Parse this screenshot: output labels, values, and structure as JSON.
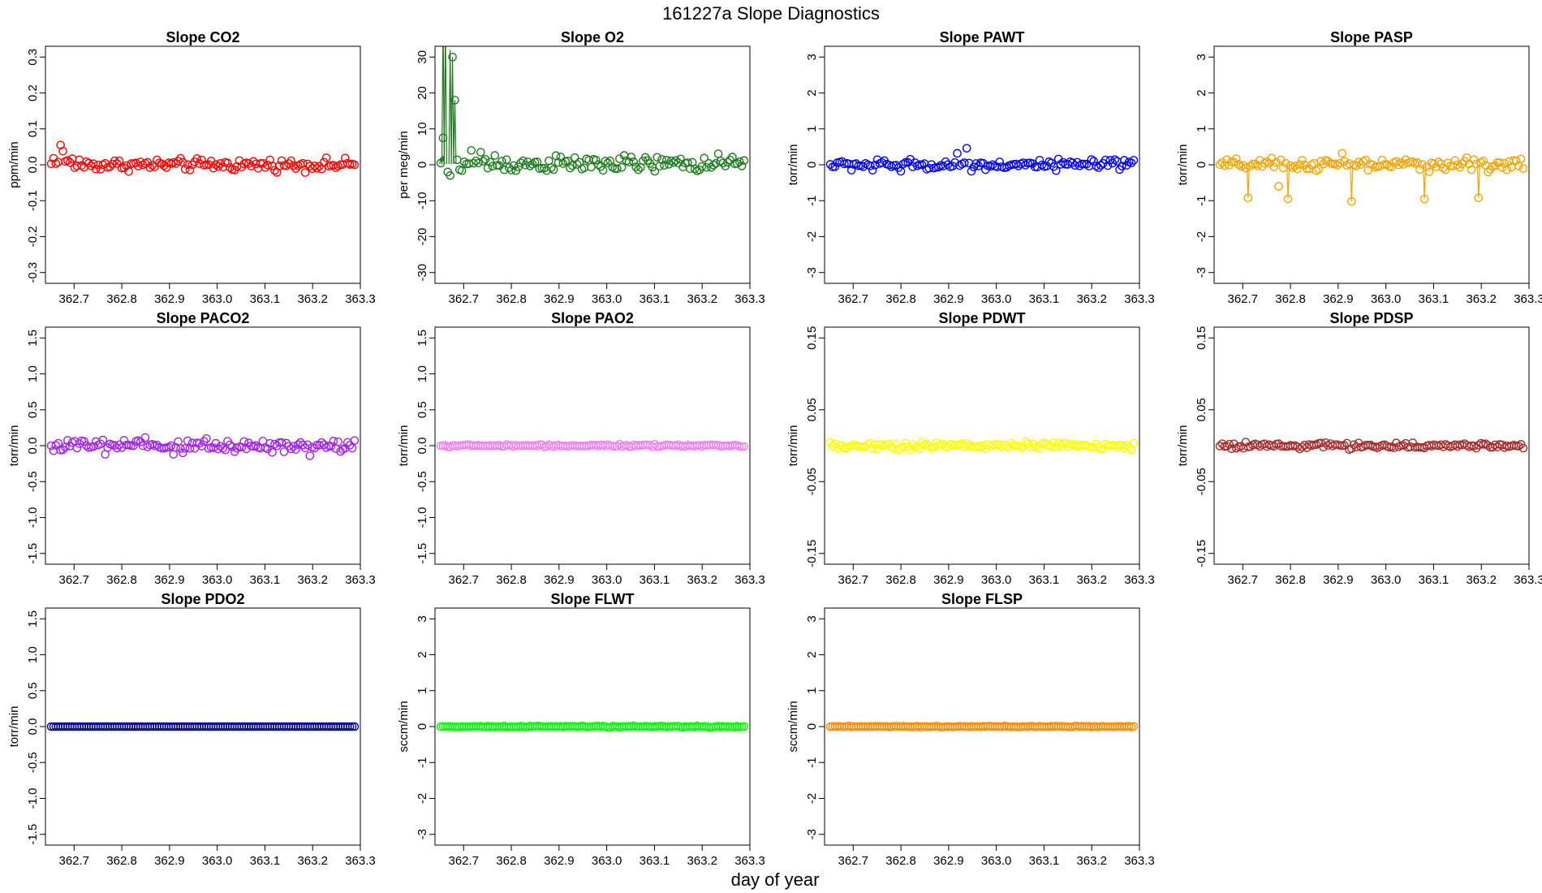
{
  "figure": {
    "title": "161227a   Slope Diagnostics",
    "xlabel": "day of year"
  },
  "chart_data": [
    {
      "type": "scatter",
      "title": "Slope CO2",
      "ylabel": "ppm/min",
      "color": "#ff0000",
      "xlim": [
        362.64,
        363.3
      ],
      "ylim": [
        -0.33,
        0.33
      ],
      "xticks": [
        "362.7",
        "362.8",
        "362.9",
        "363.0",
        "363.1",
        "363.2",
        "363.3"
      ],
      "yticks": [
        "-0.3",
        "-0.2",
        "-0.1",
        "0.0",
        "0.1",
        "0.2",
        "0.3"
      ],
      "n": 130,
      "base": 0,
      "noise": 0.008,
      "outliers": [
        [
          0.6,
          0.052
        ],
        [
          1.2,
          0.018
        ],
        [
          2.4,
          0.003
        ],
        [
          4.3,
          0.055
        ],
        [
          5.2,
          0.038
        ],
        [
          6.5,
          0.012
        ],
        [
          9.0,
          0.017
        ],
        [
          12.1,
          0.014
        ]
      ],
      "spikes": []
    },
    {
      "type": "scatter",
      "title": "Slope O2",
      "ylabel": "per meg/min",
      "color": "#1f7a1f",
      "xlim": [
        362.64,
        363.3
      ],
      "ylim": [
        -33,
        33
      ],
      "xticks": [
        "362.7",
        "362.8",
        "362.9",
        "363.0",
        "363.1",
        "363.2",
        "363.3"
      ],
      "yticks": [
        "-30",
        "-20",
        "-10",
        "0",
        "10",
        "20",
        "30"
      ],
      "n": 130,
      "base": 0.2,
      "noise": 1.1,
      "outliers": [
        [
          0.5,
          7.5
        ],
        [
          1.5,
          40
        ],
        [
          2.2,
          38
        ],
        [
          2.9,
          -2
        ],
        [
          3.6,
          32
        ],
        [
          4.0,
          -3
        ],
        [
          4.8,
          30
        ],
        [
          5.9,
          18
        ],
        [
          13.0,
          4
        ],
        [
          17.4,
          3.5
        ],
        [
          22.6,
          2.6
        ]
      ],
      "spikes": [
        [
          0.3,
          2
        ],
        [
          1.0,
          2.5
        ],
        [
          1.3,
          40
        ],
        [
          2.3,
          38
        ],
        [
          3.6,
          32
        ],
        [
          4.8,
          30
        ],
        [
          5.9,
          18
        ]
      ]
    },
    {
      "type": "scatter",
      "title": "Slope PAWT",
      "ylabel": "torr/min",
      "color": "#0000ff",
      "xlim": [
        362.64,
        363.3
      ],
      "ylim": [
        -3.3,
        3.3
      ],
      "xticks": [
        "362.7",
        "362.8",
        "362.9",
        "363.0",
        "363.1",
        "363.2",
        "363.3"
      ],
      "yticks": [
        "-3",
        "-2",
        "-1",
        "0",
        "1",
        "2",
        "3"
      ],
      "n": 130,
      "base": 0,
      "noise": 0.07,
      "outliers": [
        [
          54.0,
          0.32
        ],
        [
          58.2,
          0.46
        ],
        [
          17.6,
          -0.15
        ],
        [
          30.1,
          -0.18
        ],
        [
          96.0,
          -0.16
        ]
      ],
      "spikes": []
    },
    {
      "type": "scatter",
      "title": "Slope PASP",
      "ylabel": "torr/min",
      "color": "#f4a300",
      "xlim": [
        362.64,
        363.3
      ],
      "ylim": [
        -3.3,
        3.3
      ],
      "xticks": [
        "362.7",
        "362.8",
        "362.9",
        "363.0",
        "363.1",
        "363.2",
        "363.3"
      ],
      "yticks": [
        "-3",
        "-2",
        "-1",
        "0",
        "1",
        "2",
        "3"
      ],
      "n": 130,
      "base": 0,
      "noise": 0.08,
      "outliers": [
        [
          12.0,
          -0.92
        ],
        [
          24.5,
          -0.6
        ],
        [
          29.2,
          -0.95
        ],
        [
          56.1,
          -1.02
        ],
        [
          86.8,
          -0.95
        ],
        [
          110.3,
          -0.92
        ],
        [
          52.0,
          0.32
        ],
        [
          105.0,
          0.2
        ]
      ],
      "spikes": [
        [
          12.0,
          -0.92
        ],
        [
          29.2,
          -0.95
        ],
        [
          56.1,
          -1.02
        ],
        [
          86.8,
          -0.95
        ],
        [
          110.3,
          -0.92
        ]
      ]
    },
    {
      "type": "scatter",
      "title": "Slope PACO2",
      "ylabel": "torr/min",
      "color": "#a020f0",
      "xlim": [
        362.64,
        363.3
      ],
      "ylim": [
        -1.65,
        1.65
      ],
      "xticks": [
        "362.7",
        "362.8",
        "362.9",
        "363.0",
        "363.1",
        "363.2",
        "363.3"
      ],
      "yticks": [
        "-1.5",
        "-1.0",
        "-0.5",
        "0.0",
        "0.5",
        "1.0",
        "1.5"
      ],
      "n": 130,
      "base": 0,
      "noise": 0.045,
      "outliers": [
        [
          23.1,
          -0.12
        ],
        [
          52.0,
          -0.12
        ],
        [
          56.0,
          -0.1
        ],
        [
          110.0,
          -0.14
        ],
        [
          36.0,
          0.06
        ],
        [
          66.0,
          0.1
        ]
      ],
      "spikes": []
    },
    {
      "type": "scatter",
      "title": "Slope PAO2",
      "ylabel": "torr/min",
      "color": "#ee82ee",
      "xlim": [
        362.64,
        363.3
      ],
      "ylim": [
        -1.65,
        1.65
      ],
      "xticks": [
        "362.7",
        "362.8",
        "362.9",
        "363.0",
        "363.1",
        "363.2",
        "363.3"
      ],
      "yticks": [
        "-1.5",
        "-1.0",
        "-0.5",
        "0.0",
        "0.5",
        "1.0",
        "1.5"
      ],
      "n": 130,
      "base": 0,
      "noise": 0.008,
      "outliers": [],
      "spikes": []
    },
    {
      "type": "scatter",
      "title": "Slope PDWT",
      "ylabel": "torr/min",
      "color": "#ffff00",
      "xlim": [
        362.64,
        363.3
      ],
      "ylim": [
        -0.165,
        0.165
      ],
      "xticks": [
        "362.7",
        "362.8",
        "362.9",
        "363.0",
        "363.1",
        "363.2",
        "363.3"
      ],
      "yticks": [
        "-0.15",
        "-0.05",
        "0.05",
        "0.15"
      ],
      "n": 130,
      "base": 0,
      "noise": 0.0025,
      "outliers": [],
      "spikes": []
    },
    {
      "type": "scatter",
      "title": "Slope PDSP",
      "ylabel": "torr/min",
      "color": "#a52a2a",
      "xlim": [
        362.64,
        363.3
      ],
      "ylim": [
        -0.165,
        0.165
      ],
      "xticks": [
        "362.7",
        "362.8",
        "362.9",
        "363.0",
        "363.1",
        "363.2",
        "363.3"
      ],
      "yticks": [
        "-0.15",
        "-0.05",
        "0.05",
        "0.15"
      ],
      "n": 130,
      "base": 0,
      "noise": 0.002,
      "outliers": [],
      "spikes": []
    },
    {
      "type": "scatter",
      "title": "Slope PDO2",
      "ylabel": "torr/min",
      "color": "#00008b",
      "xlim": [
        362.64,
        363.3
      ],
      "ylim": [
        -1.65,
        1.65
      ],
      "xticks": [
        "362.7",
        "362.8",
        "362.9",
        "363.0",
        "363.1",
        "363.2",
        "363.3"
      ],
      "yticks": [
        "-1.5",
        "-1.0",
        "-0.5",
        "0.0",
        "0.5",
        "1.0",
        "1.5"
      ],
      "n": 130,
      "base": 0,
      "noise": 0,
      "outliers": [],
      "spikes": []
    },
    {
      "type": "scatter",
      "title": "Slope FLWT",
      "ylabel": "sccm/min",
      "color": "#00ff00",
      "xlim": [
        362.64,
        363.3
      ],
      "ylim": [
        -3.3,
        3.3
      ],
      "xticks": [
        "362.7",
        "362.8",
        "362.9",
        "363.0",
        "363.1",
        "363.2",
        "363.3"
      ],
      "yticks": [
        "-3",
        "-2",
        "-1",
        "0",
        "1",
        "2",
        "3"
      ],
      "n": 130,
      "base": 0,
      "noise": 0.008,
      "outliers": [],
      "spikes": []
    },
    {
      "type": "scatter",
      "title": "Slope FLSP",
      "ylabel": "sccm/min",
      "color": "#ff8c00",
      "xlim": [
        362.64,
        363.3
      ],
      "ylim": [
        -3.3,
        3.3
      ],
      "xticks": [
        "362.7",
        "362.8",
        "362.9",
        "363.0",
        "363.1",
        "363.2",
        "363.3"
      ],
      "yticks": [
        "-3",
        "-2",
        "-1",
        "0",
        "1",
        "2",
        "3"
      ],
      "n": 130,
      "base": 0,
      "noise": 0.006,
      "outliers": [],
      "spikes": []
    }
  ]
}
